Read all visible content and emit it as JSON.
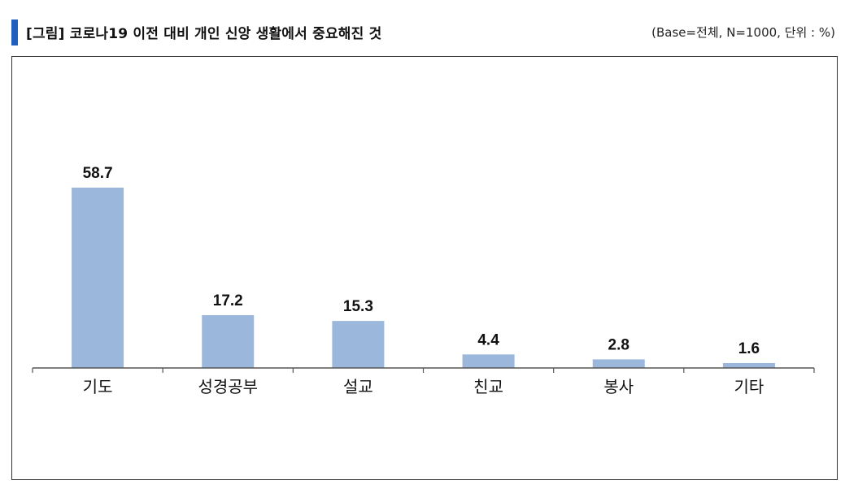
{
  "header": {
    "title": "[그림] 코로나19 이전 대비 개인 신앙 생활에서 중요해진 것",
    "note": "(Base=전체, N=1000, 단위 : %)"
  },
  "colors": {
    "bar": "#9bb7dc",
    "accent": "#1f5fbf",
    "axis": "#555555"
  },
  "chart_data": {
    "type": "bar",
    "categories": [
      "기도",
      "성경공부",
      "설교",
      "친교",
      "봉사",
      "기타"
    ],
    "values": [
      58.7,
      17.2,
      15.3,
      4.4,
      2.8,
      1.6
    ],
    "value_labels": [
      "58.7",
      "17.2",
      "15.3",
      "4.4",
      "2.8",
      "1.6"
    ],
    "ylim": [
      0,
      60
    ],
    "grid": false,
    "legend": "none"
  }
}
